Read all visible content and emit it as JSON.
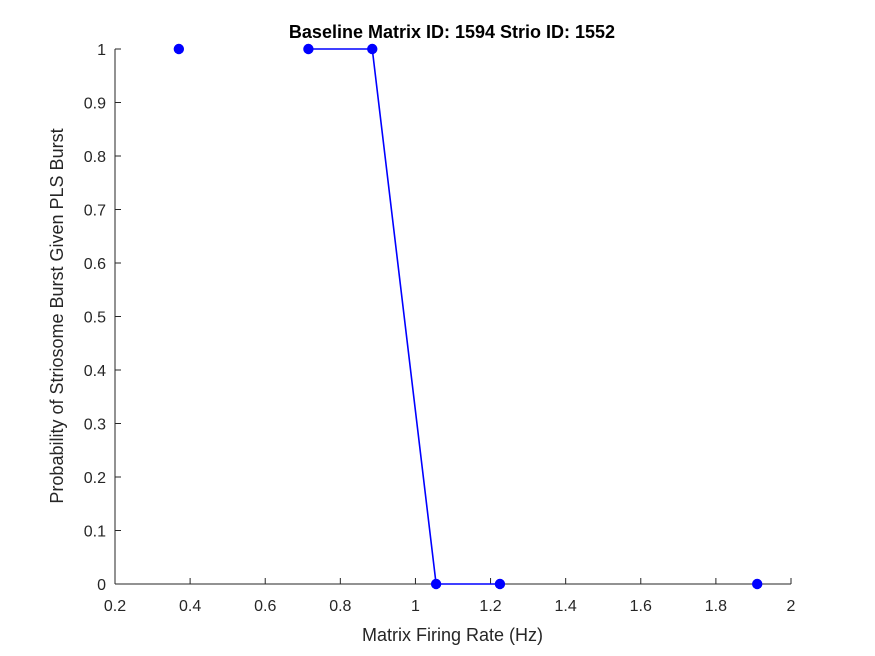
{
  "chart_data": {
    "type": "scatter",
    "title": "Baseline Matrix ID: 1594 Strio ID: 1552",
    "xlabel": "Matrix Firing Rate (Hz)",
    "ylabel": "Probability of Striosome Burst Given PLS Burst",
    "xlim": [
      0.2,
      2
    ],
    "ylim": [
      0,
      1
    ],
    "xticks": [
      "0.2",
      "0.4",
      "0.6",
      "0.8",
      "1",
      "1.2",
      "1.4",
      "1.6",
      "1.8",
      "2"
    ],
    "yticks": [
      "0",
      "0.1",
      "0.2",
      "0.3",
      "0.4",
      "0.5",
      "0.6",
      "0.7",
      "0.8",
      "0.9",
      "1"
    ],
    "grid": false,
    "color": "#0000ff",
    "series": [
      {
        "mode": "markers",
        "x": [
          0.37,
          0.715,
          0.885,
          1.055,
          1.225,
          1.91
        ],
        "y": [
          1,
          1,
          1,
          0,
          0,
          0
        ]
      },
      {
        "mode": "line",
        "x": [
          0.715,
          0.885,
          1.055,
          1.225
        ],
        "y": [
          1,
          1,
          0,
          0
        ]
      }
    ]
  }
}
